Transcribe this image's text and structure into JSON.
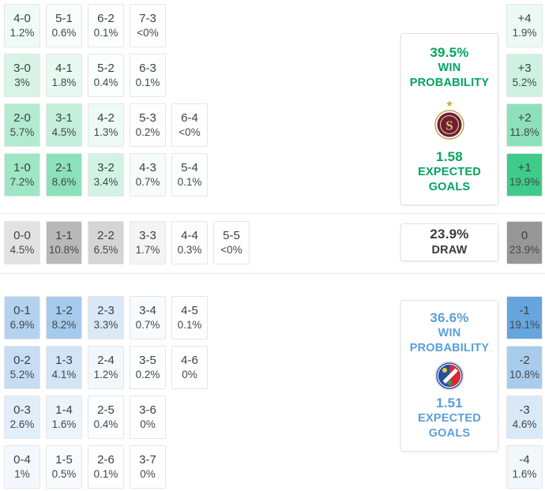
{
  "chart_data": {
    "type": "heatmap",
    "description": "Correct score probability matrix with win/draw probabilities, goal margins and expected goals",
    "home": {
      "win_probability": "39.5%",
      "expected_goals": "1.58",
      "score_rows": [
        [
          {
            "score": "4-0",
            "pct": "1.2%"
          },
          {
            "score": "5-1",
            "pct": "0.6%"
          },
          {
            "score": "6-2",
            "pct": "0.1%"
          },
          {
            "score": "7-3",
            "pct": "<0%"
          }
        ],
        [
          {
            "score": "3-0",
            "pct": "3%"
          },
          {
            "score": "4-1",
            "pct": "1.8%"
          },
          {
            "score": "5-2",
            "pct": "0.4%"
          },
          {
            "score": "6-3",
            "pct": "0.1%"
          }
        ],
        [
          {
            "score": "2-0",
            "pct": "5.7%"
          },
          {
            "score": "3-1",
            "pct": "4.5%"
          },
          {
            "score": "4-2",
            "pct": "1.3%"
          },
          {
            "score": "5-3",
            "pct": "0.2%"
          },
          {
            "score": "6-4",
            "pct": "<0%"
          }
        ],
        [
          {
            "score": "1-0",
            "pct": "7.2%"
          },
          {
            "score": "2-1",
            "pct": "8.6%"
          },
          {
            "score": "3-2",
            "pct": "3.4%"
          },
          {
            "score": "4-3",
            "pct": "0.7%"
          },
          {
            "score": "5-4",
            "pct": "0.1%"
          }
        ]
      ],
      "goal_margins": [
        {
          "diff": "+4",
          "pct": "1.9%"
        },
        {
          "diff": "+3",
          "pct": "5.2%"
        },
        {
          "diff": "+2",
          "pct": "11.8%"
        },
        {
          "diff": "+1",
          "pct": "19.9%"
        }
      ]
    },
    "draw": {
      "probability": "23.9%",
      "score_rows": [
        [
          {
            "score": "0-0",
            "pct": "4.5%"
          },
          {
            "score": "1-1",
            "pct": "10.8%"
          },
          {
            "score": "2-2",
            "pct": "6.5%"
          },
          {
            "score": "3-3",
            "pct": "1.7%"
          },
          {
            "score": "4-4",
            "pct": "0.3%"
          },
          {
            "score": "5-5",
            "pct": "<0%"
          }
        ]
      ],
      "goal_margins": [
        {
          "diff": "0",
          "pct": "23.9%"
        }
      ]
    },
    "away": {
      "win_probability": "36.6%",
      "expected_goals": "1.51",
      "score_rows": [
        [
          {
            "score": "0-1",
            "pct": "6.9%"
          },
          {
            "score": "1-2",
            "pct": "8.2%"
          },
          {
            "score": "2-3",
            "pct": "3.3%"
          },
          {
            "score": "3-4",
            "pct": "0.7%"
          },
          {
            "score": "4-5",
            "pct": "0.1%"
          }
        ],
        [
          {
            "score": "0-2",
            "pct": "5.2%"
          },
          {
            "score": "1-3",
            "pct": "4.1%"
          },
          {
            "score": "2-4",
            "pct": "1.2%"
          },
          {
            "score": "3-5",
            "pct": "0.2%"
          },
          {
            "score": "4-6",
            "pct": "0%"
          }
        ],
        [
          {
            "score": "0-3",
            "pct": "2.6%"
          },
          {
            "score": "1-4",
            "pct": "1.6%"
          },
          {
            "score": "2-5",
            "pct": "0.4%"
          },
          {
            "score": "3-6",
            "pct": "0%"
          }
        ],
        [
          {
            "score": "0-4",
            "pct": "1%"
          },
          {
            "score": "1-5",
            "pct": "0.5%"
          },
          {
            "score": "2-6",
            "pct": "0.1%"
          },
          {
            "score": "3-7",
            "pct": "0%"
          }
        ]
      ],
      "goal_margins": [
        {
          "diff": "-1",
          "pct": "19.1%"
        },
        {
          "diff": "-2",
          "pct": "10.8%"
        },
        {
          "diff": "-3",
          "pct": "4.6%"
        },
        {
          "diff": "-4",
          "pct": "1.6%"
        }
      ]
    }
  },
  "labels": {
    "win": "WIN",
    "probability": "PROBABILITY",
    "expected": "EXPECTED",
    "goals": "GOALS",
    "draw": "DRAW"
  },
  "icons": {
    "champion_star": "★",
    "home_crest_letter": "S"
  },
  "colors": {
    "home_accent": "#00a55e",
    "home_cell_base": "#2bc77e",
    "draw_accent": "#383c40",
    "draw_cell_base": "#979797",
    "away_accent": "#5b9fd9",
    "away_cell_base": "#4f97d9",
    "star_gold": "#d4a437"
  }
}
